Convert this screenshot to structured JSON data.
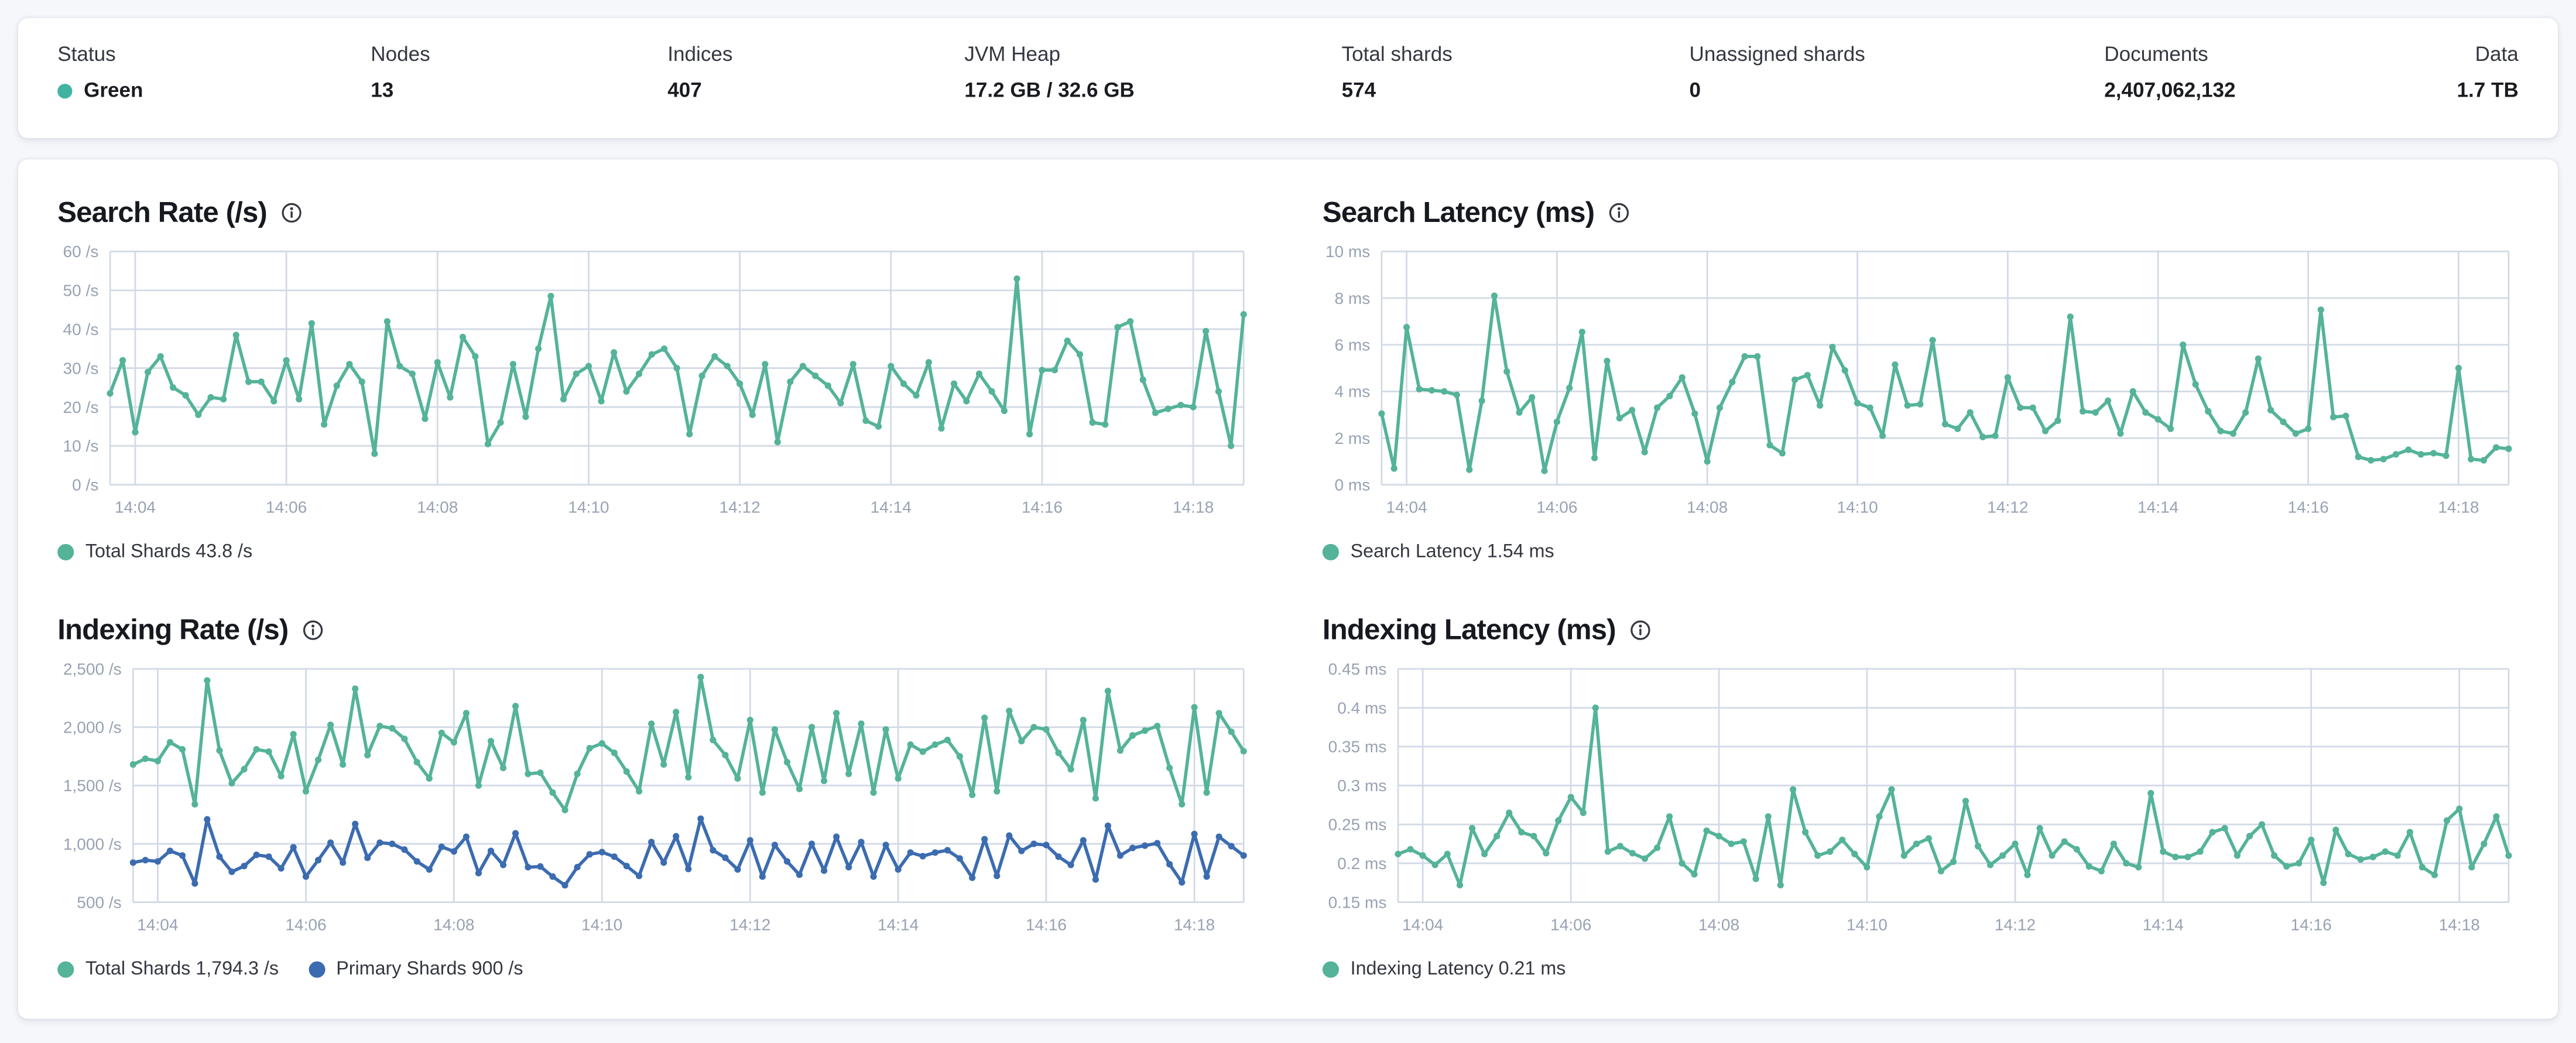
{
  "page": {
    "background": "#f5f7fa"
  },
  "colors": {
    "teal": "#54B399",
    "blue": "#3C6CB0",
    "status_green_dot": "#42B3A2",
    "grid": "#D3DAE6",
    "axis_text": "#98A2B3"
  },
  "stats": [
    {
      "label": "Status",
      "value": "Green",
      "dot_color": "#42B3A2"
    },
    {
      "label": "Nodes",
      "value": "13"
    },
    {
      "label": "Indices",
      "value": "407"
    },
    {
      "label": "JVM Heap",
      "value": "17.2 GB / 32.6 GB"
    },
    {
      "label": "Total shards",
      "value": "574"
    },
    {
      "label": "Unassigned shards",
      "value": "0"
    },
    {
      "label": "Documents",
      "value": "2,407,062,132"
    },
    {
      "label": "Data",
      "value": "1.7 TB"
    }
  ],
  "chart_data": [
    {
      "type": "line",
      "title": "Search Rate (/s)",
      "ylabel": "/s",
      "ylim": [
        0,
        60
      ],
      "yticks": [
        0,
        10,
        20,
        30,
        40,
        50,
        60
      ],
      "ytick_labels": [
        "0 /s",
        "10 /s",
        "20 /s",
        "30 /s",
        "40 /s",
        "50 /s",
        "60 /s"
      ],
      "xtick_labels": [
        "14:04",
        "14:06",
        "14:08",
        "14:10",
        "14:12",
        "14:14",
        "14:16",
        "14:18"
      ],
      "xtick_indices": [
        2,
        14,
        26,
        38,
        50,
        62,
        74,
        86
      ],
      "grid": true,
      "legend_position": "bottom",
      "gutter": 32,
      "series": [
        {
          "name": "Total Shards",
          "current_value": "43.8 /s",
          "legend_label": "Total Shards 43.8 /s",
          "color": "#54B399",
          "values": [
            23.5,
            32,
            13.5,
            29,
            33,
            25,
            23,
            18,
            22.5,
            22,
            38.5,
            26.5,
            26.5,
            21.5,
            32,
            22,
            41.5,
            15.5,
            25.5,
            31,
            26.5,
            8,
            42,
            30.5,
            28.5,
            17,
            31.5,
            22.5,
            38,
            33,
            10.5,
            16,
            31,
            17.5,
            35,
            48.5,
            22,
            28.5,
            30.5,
            21.5,
            34,
            24,
            28.5,
            33.5,
            35,
            30,
            13,
            28,
            33,
            30.5,
            26,
            18,
            31,
            11,
            26.5,
            30.5,
            28,
            25.5,
            21,
            31,
            16.5,
            15,
            30.5,
            26,
            23,
            31.5,
            14.5,
            26,
            21.5,
            28.5,
            24,
            19,
            53,
            13,
            29.5,
            29.5,
            37,
            33.5,
            16,
            15.5,
            40.5,
            42,
            27,
            18.5,
            19.5,
            20.5,
            20,
            39.5,
            24,
            10,
            43.8
          ]
        }
      ]
    },
    {
      "type": "line",
      "title": "Search Latency (ms)",
      "ylabel": "ms",
      "ylim": [
        0,
        10
      ],
      "yticks": [
        0,
        2,
        4,
        6,
        8,
        10
      ],
      "ytick_labels": [
        "0 ms",
        "2 ms",
        "4 ms",
        "6 ms",
        "8 ms",
        "10 ms"
      ],
      "xtick_labels": [
        "14:04",
        "14:06",
        "14:08",
        "14:10",
        "14:12",
        "14:14",
        "14:16",
        "14:18"
      ],
      "xtick_indices": [
        2,
        14,
        26,
        38,
        50,
        62,
        74,
        86
      ],
      "grid": true,
      "legend_position": "bottom",
      "gutter": 36,
      "series": [
        {
          "name": "Search Latency",
          "current_value": "1.54 ms",
          "legend_label": "Search Latency 1.54 ms",
          "color": "#54B399",
          "values": [
            3.05,
            0.7,
            6.75,
            4.1,
            4.05,
            4.0,
            3.85,
            0.65,
            3.6,
            8.1,
            4.85,
            3.1,
            3.75,
            0.6,
            2.7,
            4.15,
            6.55,
            1.15,
            5.3,
            2.85,
            3.2,
            1.4,
            3.3,
            3.8,
            4.6,
            3.05,
            1.0,
            3.3,
            4.4,
            5.5,
            5.5,
            1.7,
            1.35,
            4.5,
            4.7,
            3.4,
            5.9,
            4.9,
            3.5,
            3.3,
            2.1,
            5.15,
            3.4,
            3.45,
            6.2,
            2.6,
            2.4,
            3.1,
            2.05,
            2.1,
            4.6,
            3.3,
            3.3,
            2.3,
            2.75,
            7.2,
            3.15,
            3.1,
            3.6,
            2.2,
            4.0,
            3.1,
            2.8,
            2.4,
            6.0,
            4.3,
            3.15,
            2.3,
            2.2,
            3.1,
            5.4,
            3.2,
            2.7,
            2.2,
            2.4,
            7.5,
            2.9,
            2.95,
            1.2,
            1.05,
            1.1,
            1.3,
            1.5,
            1.3,
            1.35,
            1.25,
            5.0,
            1.1,
            1.05,
            1.6,
            1.54
          ]
        }
      ]
    },
    {
      "type": "line",
      "title": "Indexing Rate (/s)",
      "ylabel": "/s",
      "ylim": [
        500,
        2500
      ],
      "yticks": [
        500,
        1000,
        1500,
        2000,
        2500
      ],
      "ytick_labels": [
        "500 /s",
        "1,000 /s",
        "1,500 /s",
        "2,000 /s",
        "2,500 /s"
      ],
      "xtick_labels": [
        "14:04",
        "14:06",
        "14:08",
        "14:10",
        "14:12",
        "14:14",
        "14:16",
        "14:18"
      ],
      "xtick_indices": [
        2,
        14,
        26,
        38,
        50,
        62,
        74,
        86
      ],
      "grid": true,
      "legend_position": "bottom",
      "gutter": 46,
      "series": [
        {
          "name": "Total Shards",
          "current_value": "1,794.3 /s",
          "legend_label": "Total Shards 1,794.3 /s",
          "color": "#54B399",
          "values": [
            1680,
            1730,
            1710,
            1870,
            1810,
            1340,
            2400,
            1800,
            1520,
            1640,
            1810,
            1790,
            1580,
            1940,
            1450,
            1720,
            2020,
            1680,
            2330,
            1760,
            2010,
            1990,
            1900,
            1700,
            1560,
            1950,
            1870,
            2120,
            1500,
            1880,
            1650,
            2180,
            1600,
            1610,
            1440,
            1290,
            1600,
            1820,
            1860,
            1780,
            1620,
            1450,
            2030,
            1680,
            2130,
            1570,
            2430,
            1890,
            1760,
            1560,
            2060,
            1440,
            1980,
            1700,
            1470,
            2000,
            1540,
            2120,
            1600,
            2030,
            1440,
            1980,
            1560,
            1850,
            1790,
            1850,
            1890,
            1750,
            1420,
            2080,
            1450,
            2140,
            1880,
            2000,
            1980,
            1780,
            1640,
            2060,
            1390,
            2310,
            1800,
            1930,
            1970,
            2010,
            1650,
            1340,
            2170,
            1440,
            2120,
            1960,
            1794.3
          ]
        },
        {
          "name": "Primary Shards",
          "current_value": "900 /s",
          "legend_label": "Primary Shards 900 /s",
          "color": "#3C6CB0",
          "values": [
            840,
            860,
            850,
            940,
            900,
            660,
            1210,
            890,
            760,
            810,
            905,
            890,
            790,
            970,
            720,
            860,
            1010,
            840,
            1170,
            880,
            1010,
            1000,
            950,
            850,
            780,
            975,
            935,
            1060,
            750,
            940,
            820,
            1090,
            800,
            805,
            720,
            645,
            800,
            910,
            930,
            890,
            810,
            725,
            1015,
            840,
            1065,
            785,
            1215,
            945,
            880,
            780,
            1030,
            720,
            990,
            850,
            735,
            1000,
            770,
            1060,
            800,
            1015,
            720,
            990,
            780,
            925,
            895,
            925,
            945,
            875,
            710,
            1040,
            725,
            1070,
            940,
            1000,
            990,
            890,
            820,
            1030,
            695,
            1155,
            900,
            965,
            985,
            1005,
            825,
            670,
            1085,
            720,
            1060,
            980,
            900
          ]
        }
      ]
    },
    {
      "type": "line",
      "title": "Indexing Latency (ms)",
      "ylabel": "ms",
      "ylim": [
        0.15,
        0.45
      ],
      "yticks": [
        0.15,
        0.2,
        0.25,
        0.3,
        0.35,
        0.4,
        0.45
      ],
      "ytick_labels": [
        "0.15 ms",
        "0.2 ms",
        "0.25 ms",
        "0.3 ms",
        "0.35 ms",
        "0.4 ms",
        "0.45 ms"
      ],
      "xtick_labels": [
        "14:04",
        "14:06",
        "14:08",
        "14:10",
        "14:12",
        "14:14",
        "14:16",
        "14:18"
      ],
      "xtick_indices": [
        2,
        14,
        26,
        38,
        50,
        62,
        74,
        86
      ],
      "grid": true,
      "legend_position": "bottom",
      "gutter": 46,
      "series": [
        {
          "name": "Indexing Latency",
          "current_value": "0.21 ms",
          "legend_label": "Indexing Latency 0.21 ms",
          "color": "#54B399",
          "values": [
            0.212,
            0.218,
            0.21,
            0.198,
            0.212,
            0.172,
            0.245,
            0.212,
            0.235,
            0.265,
            0.24,
            0.235,
            0.213,
            0.255,
            0.285,
            0.265,
            0.4,
            0.215,
            0.222,
            0.213,
            0.206,
            0.22,
            0.26,
            0.2,
            0.186,
            0.242,
            0.235,
            0.225,
            0.228,
            0.18,
            0.26,
            0.172,
            0.295,
            0.24,
            0.21,
            0.215,
            0.23,
            0.212,
            0.195,
            0.26,
            0.295,
            0.21,
            0.225,
            0.232,
            0.19,
            0.202,
            0.28,
            0.222,
            0.198,
            0.21,
            0.225,
            0.185,
            0.245,
            0.21,
            0.228,
            0.218,
            0.196,
            0.19,
            0.225,
            0.2,
            0.195,
            0.29,
            0.215,
            0.208,
            0.208,
            0.215,
            0.24,
            0.245,
            0.21,
            0.235,
            0.25,
            0.21,
            0.196,
            0.2,
            0.23,
            0.175,
            0.243,
            0.212,
            0.205,
            0.208,
            0.215,
            0.21,
            0.24,
            0.195,
            0.185,
            0.255,
            0.27,
            0.195,
            0.225,
            0.26,
            0.21
          ]
        }
      ]
    }
  ]
}
